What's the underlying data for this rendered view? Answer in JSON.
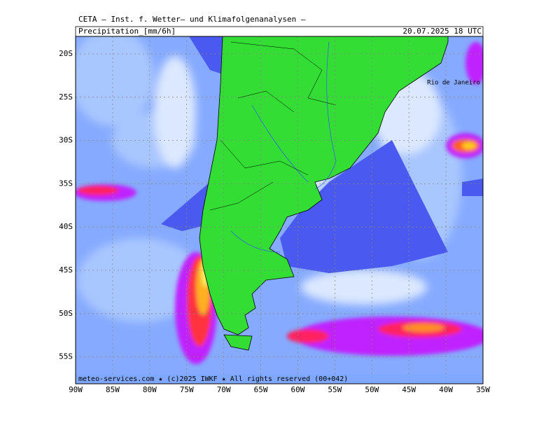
{
  "header": {
    "title": "CETA — Inst. f. Wetter— und Klimafolgenanalysen —",
    "variable": "Precipitation_[mm/6h]",
    "time": "20.07.2025 18 UTC"
  },
  "map": {
    "city_label": "Rio de Janeiro",
    "lat_labels": [
      "20S",
      "25S",
      "30S",
      "35S",
      "40S",
      "45S",
      "50S",
      "55S"
    ],
    "lon_labels": [
      "90W",
      "85W",
      "80W",
      "75W",
      "70W",
      "65W",
      "60W",
      "55W",
      "50W",
      "45W",
      "40W",
      "35W"
    ]
  },
  "footer": {
    "credit": "meteo-services.com ★ (c)2025 IWKF ★ All rights reserved (00+042)"
  }
}
